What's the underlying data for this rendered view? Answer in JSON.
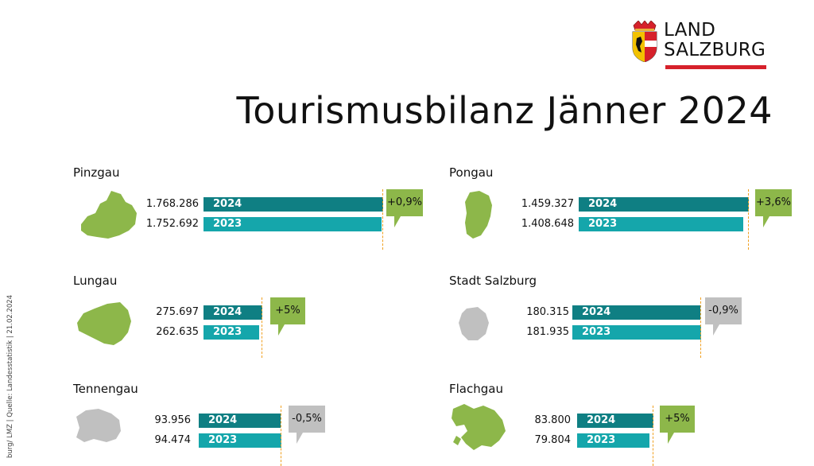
{
  "logo": {
    "line1": "LAND",
    "line2": "SALZBURG"
  },
  "title": "Tourismusbilanz Jänner 2024",
  "side_note": "burg/ LMZ | Quelle: Landesstatistik | 21.02.2024",
  "colors": {
    "bar_2024": "#0f7f83",
    "bar_2023": "#15a6ab",
    "positive": "#8db74a",
    "negative": "#c0c0c0",
    "guide": "#f0a020"
  },
  "chart_data": {
    "type": "bar",
    "series_labels": [
      "2024",
      "2023"
    ],
    "regions": [
      {
        "name": "Pinzgau",
        "v2024": 1768286,
        "v2023": 1752692,
        "v2024_text": "1.768.286",
        "v2023_text": "1.752.692",
        "change": "+0,9%",
        "trend": "up"
      },
      {
        "name": "Pongau",
        "v2024": 1459327,
        "v2023": 1408648,
        "v2024_text": "1.459.327",
        "v2023_text": "1.408.648",
        "change": "+3,6%",
        "trend": "up"
      },
      {
        "name": "Lungau",
        "v2024": 275697,
        "v2023": 262635,
        "v2024_text": "275.697",
        "v2023_text": "262.635",
        "change": "+5%",
        "trend": "up"
      },
      {
        "name": "Stadt Salzburg",
        "v2024": 180315,
        "v2023": 181935,
        "v2024_text": "180.315",
        "v2023_text": "181.935",
        "change": "-0,9%",
        "trend": "down"
      },
      {
        "name": "Tennengau",
        "v2024": 93956,
        "v2023": 94474,
        "v2024_text": "93.956",
        "v2023_text": "94.474",
        "change": "-0,5%",
        "trend": "down"
      },
      {
        "name": "Flachgau",
        "v2024": 83800,
        "v2023": 79804,
        "v2024_text": "83.800",
        "v2023_text": "79.804",
        "change": "+5%",
        "trend": "up"
      }
    ]
  }
}
